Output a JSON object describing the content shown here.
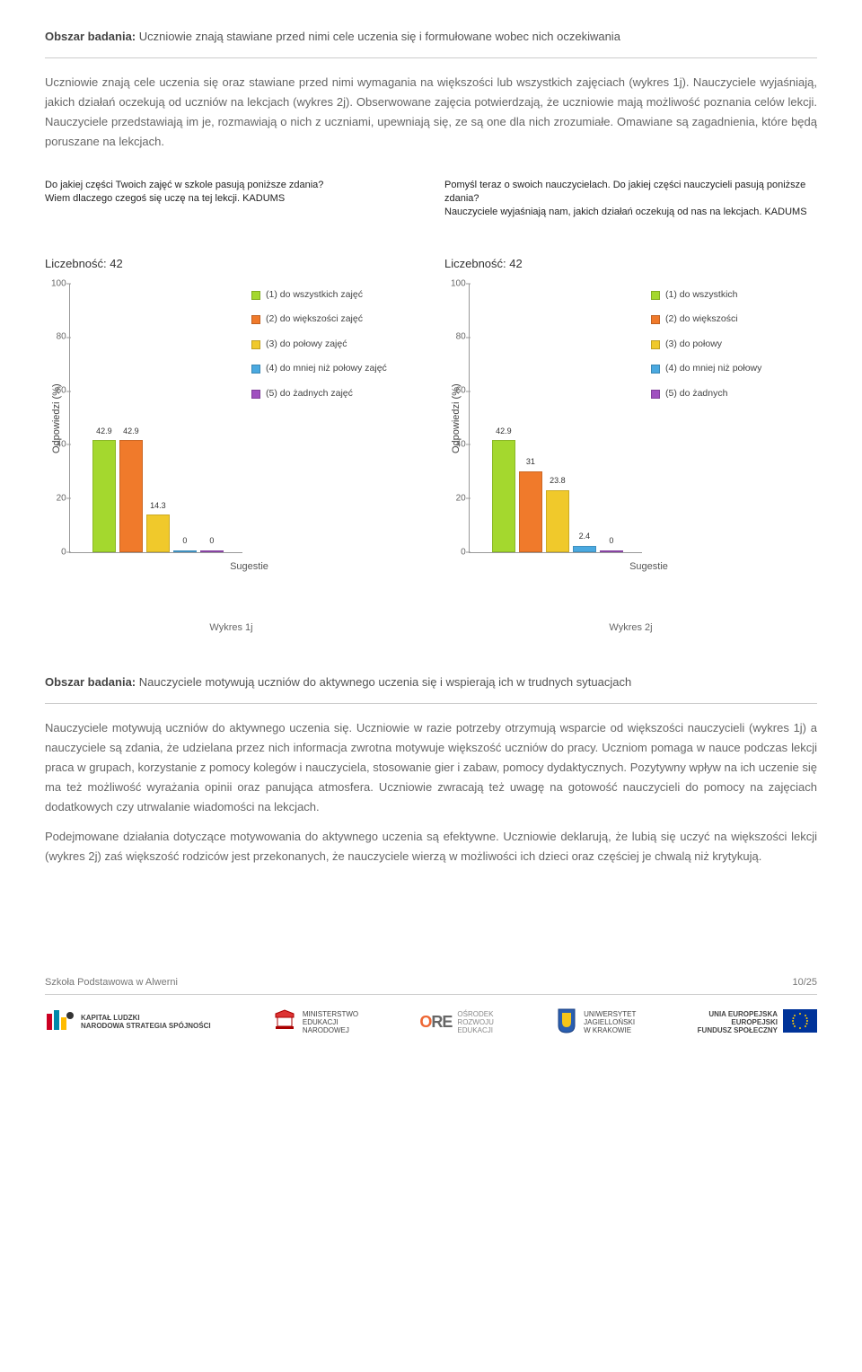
{
  "section1": {
    "label": "Obszar badania:",
    "title": "Uczniowie znają stawiane przed nimi cele uczenia się i formułowane wobec nich oczekiwania",
    "body": "Uczniowie znają cele uczenia się oraz stawiane przed nimi wymagania na większości lub wszystkich zajęciach (wykres 1j). Nauczyciele wyjaśniają, jakich działań oczekują od uczniów na lekcjach (wykres 2j). Obserwowane zajęcia potwierdzają, że uczniowie mają możliwość poznania celów lekcji. Nauczyciele przedstawiają im je, rozmawiają o nich z uczniami, upewniają się, ze są one dla nich zrozumiałe. Omawiane są zagadnienia, które będą poruszane na lekcjach."
  },
  "chart1": {
    "question": "Do jakiej części Twoich zajęć w szkole pasują poniższe zdania?\nWiem dlaczego czegoś się uczę na tej lekcji. KADUMS",
    "count_label": "Liczebność: 42",
    "ylabel": "Odpowiedzi (%)",
    "xlabel": "Sugestie",
    "ymax": 100,
    "yticks": [
      0,
      20,
      40,
      60,
      80,
      100
    ],
    "bars": [
      {
        "value": 42.9,
        "label": "42.9",
        "color": "#a4d82e"
      },
      {
        "value": 42.9,
        "label": "42.9",
        "color": "#f07a2b"
      },
      {
        "value": 14.3,
        "label": "14.3",
        "color": "#f0c92b"
      },
      {
        "value": 0,
        "label": "0",
        "color": "#4aa9e0"
      },
      {
        "value": 0,
        "label": "0",
        "color": "#a050c0"
      }
    ],
    "legend": [
      {
        "color": "#a4d82e",
        "text": "(1) do wszystkich zajęć"
      },
      {
        "color": "#f07a2b",
        "text": "(2) do większości zajęć"
      },
      {
        "color": "#f0c92b",
        "text": "(3) do połowy zajęć"
      },
      {
        "color": "#4aa9e0",
        "text": "(4) do mniej niż połowy zajęć"
      },
      {
        "color": "#a050c0",
        "text": "(5) do żadnych zajęć"
      }
    ]
  },
  "chart2": {
    "question": "Pomyśl teraz o swoich nauczycielach. Do jakiej części nauczycieli pasują poniższe zdania?\nNauczyciele wyjaśniają nam, jakich działań oczekują od nas na lekcjach. KADUMS",
    "count_label": "Liczebność: 42",
    "ylabel": "Odpowiedzi (%)",
    "xlabel": "Sugestie",
    "ymax": 100,
    "yticks": [
      0,
      20,
      40,
      60,
      80,
      100
    ],
    "bars": [
      {
        "value": 42.9,
        "label": "42.9",
        "color": "#a4d82e"
      },
      {
        "value": 31,
        "label": "31",
        "color": "#f07a2b"
      },
      {
        "value": 23.8,
        "label": "23.8",
        "color": "#f0c92b"
      },
      {
        "value": 2.4,
        "label": "2.4",
        "color": "#4aa9e0"
      },
      {
        "value": 0,
        "label": "0",
        "color": "#a050c0"
      }
    ],
    "legend": [
      {
        "color": "#a4d82e",
        "text": "(1) do wszystkich"
      },
      {
        "color": "#f07a2b",
        "text": "(2) do większości"
      },
      {
        "color": "#f0c92b",
        "text": "(3) do połowy"
      },
      {
        "color": "#4aa9e0",
        "text": "(4) do mniej niż połowy"
      },
      {
        "color": "#a050c0",
        "text": "(5) do żadnych"
      }
    ]
  },
  "wyk": {
    "left": "Wykres 1j",
    "right": "Wykres 2j"
  },
  "section2": {
    "label": "Obszar badania:",
    "title": "Nauczyciele motywują uczniów do aktywnego uczenia się i wspierają ich w trudnych sytuacjach",
    "body1": "Nauczyciele motywują uczniów do aktywnego uczenia się. Uczniowie w razie potrzeby otrzymują wsparcie od większości nauczycieli (wykres 1j) a nauczyciele są zdania, że udzielana przez nich informacja zwrotna motywuje większość uczniów do pracy. Uczniom pomaga w nauce podczas lekcji praca w grupach, korzystanie z pomocy kolegów i nauczyciela, stosowanie gier i zabaw, pomocy dydaktycznych. Pozytywny wpływ na ich uczenie się ma też możliwość wyrażania opinii oraz panująca atmosfera. Uczniowie zwracają też uwagę na gotowość nauczycieli do pomocy na zajęciach dodatkowych czy utrwalanie wiadomości na lekcjach.",
    "body2": "Podejmowane działania dotyczące motywowania do aktywnego uczenia są efektywne. Uczniowie deklarują, że lubią się uczyć na większości lekcji (wykres 2j) zaś większość rodziców jest przekonanych, że nauczyciele wierzą w możliwości ich dzieci oraz częściej je chwalą niż krytykują."
  },
  "footer": {
    "school": "Szkoła Podstawowa w Alwerni",
    "page": "10/25",
    "logos": {
      "kapital": "KAPITAŁ LUDZKI\nNARODOWA STRATEGIA SPÓJNOŚCI",
      "men": "MINISTERSTWO\nEDUKACJI\nNARODOWEJ",
      "ore": "OŚRODEK\nROZWOJU\nEDUKACJI",
      "uj": "UNIWERSYTET\nJAGIELLOŃSKI\nW KRAKOWIE",
      "ue": "UNIA EUROPEJSKA\nEUROPEJSKI\nFUNDUSZ SPOŁECZNY"
    }
  }
}
